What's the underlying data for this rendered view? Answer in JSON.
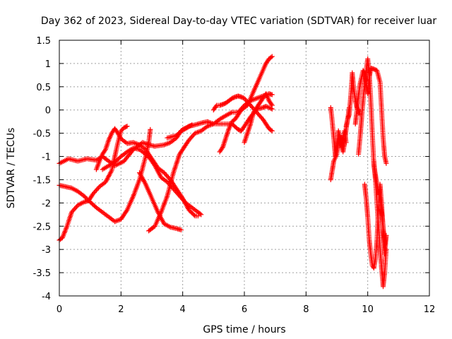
{
  "chart_data": {
    "type": "scatter",
    "title": "Day 362 of 2023, Sidereal Day-to-day VTEC variation (SDTVAR) for receiver luar",
    "xlabel": "GPS time / hours",
    "ylabel": "SDTVAR / TECUs",
    "xlim": [
      0,
      12
    ],
    "ylim": [
      -4,
      1.5
    ],
    "x_ticks": [
      0,
      2,
      4,
      6,
      8,
      10,
      12
    ],
    "y_ticks": [
      -4,
      -3.5,
      -3,
      -2.5,
      -2,
      -1.5,
      -1,
      -0.5,
      0,
      0.5,
      1,
      1.5
    ],
    "x_tick_labels": [
      "0",
      "2",
      "4",
      "6",
      "8",
      "10",
      "12"
    ],
    "y_tick_labels": [
      "-4",
      "-3.5",
      "-3",
      "-2.5",
      "-2",
      "-1.5",
      "-1",
      "-0.5",
      "0",
      "0.5",
      "1",
      "1.5"
    ],
    "grid": true,
    "marker": "plus",
    "color": "#ff0000",
    "traces": [
      [
        [
          0.0,
          -1.15
        ],
        [
          0.3,
          -1.05
        ],
        [
          0.6,
          -1.1
        ],
        [
          0.9,
          -1.05
        ],
        [
          1.2,
          -1.08
        ],
        [
          1.4,
          -1.0
        ],
        [
          1.6,
          -1.1
        ],
        [
          1.8,
          -1.2
        ],
        [
          2.1,
          -1.1
        ],
        [
          2.4,
          -0.85
        ],
        [
          2.7,
          -0.7
        ],
        [
          2.9,
          -0.75
        ],
        [
          3.1,
          -0.78
        ],
        [
          3.4,
          -0.75
        ],
        [
          3.6,
          -0.7
        ],
        [
          3.8,
          -0.6
        ],
        [
          3.95,
          -0.45
        ],
        [
          4.1,
          -0.4
        ],
        [
          4.3,
          -0.32
        ]
      ],
      [
        [
          0.0,
          -2.8
        ],
        [
          0.1,
          -2.75
        ],
        [
          0.25,
          -2.5
        ],
        [
          0.4,
          -2.2
        ],
        [
          0.6,
          -2.05
        ],
        [
          0.8,
          -1.98
        ],
        [
          0.95,
          -1.95
        ],
        [
          1.1,
          -1.8
        ],
        [
          1.3,
          -1.65
        ],
        [
          1.5,
          -1.55
        ],
        [
          1.7,
          -1.3
        ],
        [
          1.8,
          -1.0
        ],
        [
          1.9,
          -0.7
        ],
        [
          2.0,
          -0.45
        ],
        [
          2.1,
          -0.38
        ],
        [
          2.2,
          -0.35
        ]
      ],
      [
        [
          0.0,
          -1.62
        ],
        [
          0.2,
          -1.65
        ],
        [
          0.4,
          -1.68
        ],
        [
          0.6,
          -1.75
        ],
        [
          0.8,
          -1.85
        ],
        [
          1.0,
          -1.98
        ],
        [
          1.2,
          -2.1
        ],
        [
          1.4,
          -2.2
        ],
        [
          1.6,
          -2.3
        ],
        [
          1.8,
          -2.4
        ],
        [
          2.0,
          -2.35
        ],
        [
          2.2,
          -2.15
        ],
        [
          2.4,
          -1.85
        ],
        [
          2.6,
          -1.5
        ],
        [
          2.8,
          -1.0
        ],
        [
          2.9,
          -0.7
        ],
        [
          2.95,
          -0.42
        ]
      ],
      [
        [
          1.2,
          -1.28
        ],
        [
          1.3,
          -1.1
        ],
        [
          1.4,
          -0.95
        ],
        [
          1.5,
          -0.85
        ],
        [
          1.6,
          -0.65
        ],
        [
          1.7,
          -0.5
        ],
        [
          1.8,
          -0.4
        ],
        [
          1.9,
          -0.5
        ],
        [
          2.0,
          -0.62
        ],
        [
          2.2,
          -0.72
        ],
        [
          2.4,
          -0.7
        ],
        [
          2.6,
          -0.75
        ],
        [
          2.8,
          -0.85
        ],
        [
          3.0,
          -1.05
        ],
        [
          3.2,
          -1.25
        ],
        [
          3.4,
          -1.35
        ],
        [
          3.6,
          -1.5
        ],
        [
          3.8,
          -1.7
        ],
        [
          4.0,
          -1.9
        ],
        [
          4.2,
          -2.15
        ],
        [
          4.4,
          -2.28
        ],
        [
          4.5,
          -2.28
        ]
      ],
      [
        [
          1.4,
          -1.28
        ],
        [
          1.6,
          -1.2
        ],
        [
          1.8,
          -1.12
        ],
        [
          2.0,
          -1.0
        ],
        [
          2.2,
          -0.9
        ],
        [
          2.4,
          -0.82
        ],
        [
          2.6,
          -0.85
        ],
        [
          2.8,
          -0.95
        ],
        [
          2.95,
          -1.05
        ],
        [
          3.1,
          -1.2
        ],
        [
          3.3,
          -1.45
        ],
        [
          3.5,
          -1.55
        ],
        [
          3.7,
          -1.7
        ],
        [
          3.9,
          -1.85
        ],
        [
          4.1,
          -2.0
        ],
        [
          4.3,
          -2.1
        ],
        [
          4.5,
          -2.2
        ],
        [
          4.6,
          -2.25
        ]
      ],
      [
        [
          2.6,
          -1.35
        ],
        [
          2.8,
          -1.6
        ],
        [
          3.0,
          -1.9
        ],
        [
          3.2,
          -2.2
        ],
        [
          3.4,
          -2.45
        ],
        [
          3.6,
          -2.52
        ],
        [
          3.8,
          -2.55
        ],
        [
          3.95,
          -2.58
        ]
      ],
      [
        [
          2.9,
          -2.6
        ],
        [
          3.0,
          -2.55
        ],
        [
          3.1,
          -2.5
        ],
        [
          3.3,
          -2.2
        ],
        [
          3.5,
          -1.85
        ],
        [
          3.6,
          -1.6
        ],
        [
          3.7,
          -1.35
        ],
        [
          3.8,
          -1.15
        ],
        [
          3.9,
          -0.95
        ],
        [
          4.0,
          -0.85
        ],
        [
          4.2,
          -0.65
        ],
        [
          4.4,
          -0.5
        ],
        [
          4.6,
          -0.45
        ],
        [
          4.8,
          -0.35
        ],
        [
          5.0,
          -0.3
        ],
        [
          5.2,
          -0.2
        ],
        [
          5.4,
          -0.12
        ],
        [
          5.6,
          -0.05
        ],
        [
          5.8,
          -0.05
        ],
        [
          6.0,
          0.1
        ],
        [
          6.2,
          0.2
        ],
        [
          6.4,
          0.25
        ],
        [
          6.6,
          0.3
        ],
        [
          6.8,
          0.35
        ],
        [
          6.9,
          0.33
        ]
      ],
      [
        [
          3.5,
          -0.6
        ],
        [
          3.8,
          -0.55
        ],
        [
          4.0,
          -0.42
        ],
        [
          4.2,
          -0.35
        ],
        [
          4.4,
          -0.32
        ],
        [
          4.6,
          -0.28
        ],
        [
          4.8,
          -0.25
        ],
        [
          5.0,
          -0.3
        ],
        [
          5.2,
          -0.3
        ],
        [
          5.4,
          -0.3
        ],
        [
          5.6,
          -0.3
        ],
        [
          5.8,
          -0.42
        ],
        [
          5.9,
          -0.45
        ],
        [
          6.0,
          -0.35
        ],
        [
          6.1,
          -0.25
        ],
        [
          6.2,
          -0.15
        ],
        [
          6.4,
          0.02
        ],
        [
          6.6,
          0.05
        ],
        [
          6.7,
          0.08
        ],
        [
          6.9,
          0.02
        ]
      ],
      [
        [
          5.0,
          0.0
        ],
        [
          5.1,
          0.1
        ],
        [
          5.2,
          0.1
        ],
        [
          5.3,
          0.12
        ],
        [
          5.4,
          0.15
        ],
        [
          5.5,
          0.2
        ],
        [
          5.6,
          0.25
        ],
        [
          5.7,
          0.28
        ],
        [
          5.8,
          0.3
        ],
        [
          5.9,
          0.28
        ],
        [
          6.0,
          0.25
        ],
        [
          6.2,
          0.1
        ],
        [
          6.4,
          -0.05
        ],
        [
          6.6,
          -0.2
        ],
        [
          6.7,
          -0.3
        ],
        [
          6.8,
          -0.4
        ],
        [
          6.9,
          -0.45
        ]
      ],
      [
        [
          5.2,
          -0.9
        ],
        [
          5.3,
          -0.8
        ],
        [
          5.4,
          -0.6
        ],
        [
          5.5,
          -0.4
        ],
        [
          5.6,
          -0.25
        ],
        [
          5.7,
          -0.2
        ],
        [
          5.8,
          -0.1
        ],
        [
          5.9,
          0.0
        ],
        [
          6.0,
          0.05
        ],
        [
          6.1,
          0.1
        ],
        [
          6.2,
          0.25
        ],
        [
          6.3,
          0.4
        ],
        [
          6.4,
          0.55
        ],
        [
          6.5,
          0.7
        ],
        [
          6.6,
          0.85
        ],
        [
          6.7,
          1.0
        ],
        [
          6.8,
          1.1
        ],
        [
          6.9,
          1.15
        ]
      ],
      [
        [
          6.0,
          -0.7
        ],
        [
          6.1,
          -0.5
        ],
        [
          6.2,
          -0.3
        ],
        [
          6.3,
          -0.05
        ],
        [
          6.4,
          0.05
        ],
        [
          6.5,
          0.15
        ],
        [
          6.6,
          0.25
        ],
        [
          6.7,
          0.35
        ],
        [
          6.8,
          0.2
        ],
        [
          6.9,
          0.1
        ]
      ],
      [
        [
          8.8,
          0.05
        ],
        [
          8.85,
          -0.25
        ],
        [
          8.9,
          -0.6
        ],
        [
          8.95,
          -1.0
        ],
        [
          9.0,
          -0.8
        ],
        [
          9.05,
          -0.45
        ],
        [
          9.1,
          -0.6
        ],
        [
          9.2,
          -0.9
        ],
        [
          9.25,
          -0.7
        ],
        [
          9.3,
          -0.4
        ],
        [
          9.35,
          -0.2
        ],
        [
          9.4,
          0.05
        ]
      ],
      [
        [
          8.8,
          -1.5
        ],
        [
          8.85,
          -1.3
        ],
        [
          8.9,
          -1.1
        ],
        [
          9.0,
          -0.95
        ],
        [
          9.05,
          -0.7
        ],
        [
          9.1,
          -0.55
        ],
        [
          9.15,
          -0.8
        ],
        [
          9.2,
          -0.6
        ],
        [
          9.25,
          -0.45
        ],
        [
          9.3,
          -0.7
        ]
      ],
      [
        [
          9.6,
          -0.3
        ],
        [
          9.65,
          0.0
        ],
        [
          9.7,
          0.3
        ],
        [
          9.75,
          0.55
        ],
        [
          9.8,
          0.7
        ],
        [
          9.85,
          0.85
        ],
        [
          9.9,
          0.8
        ],
        [
          9.95,
          0.6
        ],
        [
          10.0,
          0.35
        ],
        [
          10.05,
          0.7
        ],
        [
          10.1,
          0.9
        ],
        [
          10.2,
          0.88
        ],
        [
          10.3,
          0.85
        ],
        [
          10.4,
          0.6
        ],
        [
          10.45,
          0.0
        ],
        [
          10.5,
          -0.6
        ],
        [
          10.55,
          -1.0
        ],
        [
          10.6,
          -1.15
        ]
      ],
      [
        [
          9.3,
          -0.35
        ],
        [
          9.35,
          -0.2
        ],
        [
          9.4,
          -0.1
        ],
        [
          9.45,
          0.3
        ],
        [
          9.5,
          0.8
        ],
        [
          9.55,
          0.45
        ],
        [
          9.6,
          0.2
        ],
        [
          9.65,
          0.05
        ],
        [
          9.7,
          0.0
        ],
        [
          9.75,
          -0.1
        ]
      ],
      [
        [
          9.7,
          -0.95
        ],
        [
          9.75,
          -0.6
        ],
        [
          9.8,
          -0.2
        ],
        [
          9.85,
          0.2
        ],
        [
          9.9,
          0.55
        ],
        [
          9.95,
          0.85
        ],
        [
          10.0,
          1.1
        ],
        [
          10.05,
          0.8
        ],
        [
          10.1,
          0.2
        ],
        [
          10.15,
          -0.5
        ],
        [
          10.2,
          -1.2
        ],
        [
          10.3,
          -1.6
        ],
        [
          10.4,
          -1.9
        ],
        [
          10.5,
          -2.5
        ],
        [
          10.55,
          -2.9
        ],
        [
          10.6,
          -2.7
        ]
      ],
      [
        [
          9.9,
          -1.6
        ],
        [
          9.95,
          -1.9
        ],
        [
          10.0,
          -2.3
        ],
        [
          10.05,
          -2.8
        ],
        [
          10.1,
          -3.1
        ],
        [
          10.15,
          -3.35
        ],
        [
          10.2,
          -3.4
        ],
        [
          10.25,
          -3.2
        ],
        [
          10.3,
          -2.8
        ],
        [
          10.35,
          -2.1
        ],
        [
          10.4,
          -1.6
        ],
        [
          10.45,
          -2.0
        ],
        [
          10.5,
          -2.6
        ],
        [
          10.55,
          -3.1
        ],
        [
          10.6,
          -2.7
        ]
      ],
      [
        [
          10.2,
          -1.1
        ],
        [
          10.25,
          -1.5
        ],
        [
          10.3,
          -2.0
        ],
        [
          10.35,
          -2.5
        ],
        [
          10.4,
          -3.0
        ],
        [
          10.45,
          -3.4
        ],
        [
          10.5,
          -3.8
        ],
        [
          10.55,
          -3.5
        ],
        [
          10.6,
          -3.0
        ]
      ]
    ]
  }
}
